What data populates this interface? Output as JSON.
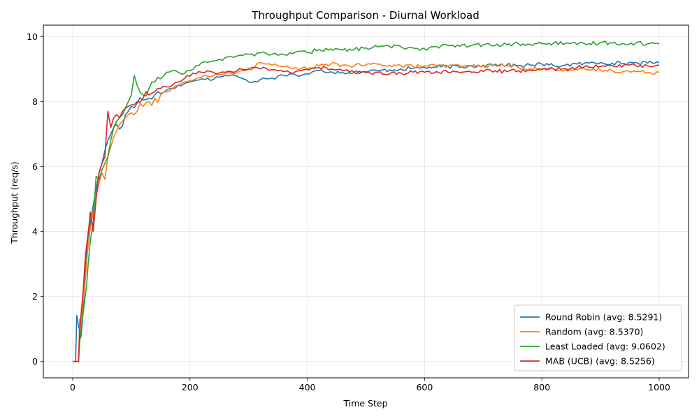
{
  "chart_data": {
    "type": "line",
    "title": "Throughput Comparison - Diurnal Workload",
    "xlabel": "Time Step",
    "ylabel": "Throughput (req/s)",
    "xlim": [
      -50,
      1050
    ],
    "ylim": [
      -0.5,
      10.35
    ],
    "xticks": [
      0,
      200,
      400,
      600,
      800,
      1000
    ],
    "yticks": [
      0,
      2,
      4,
      6,
      8,
      10
    ],
    "grid": true,
    "legend_position": "lower-right",
    "series": [
      {
        "name": "Round Robin (avg: 8.5291)",
        "color": "#1f77b4",
        "x": [
          0,
          5,
          7,
          10,
          12,
          14,
          16,
          18,
          20,
          22,
          24,
          26,
          28,
          30,
          35,
          40,
          45,
          50,
          55,
          60,
          65,
          70,
          75,
          80,
          85,
          90,
          95,
          100,
          110,
          120,
          130,
          140,
          150,
          160,
          170,
          180,
          190,
          200,
          210,
          220,
          230,
          240,
          250,
          260,
          270,
          280,
          290,
          300,
          310,
          320,
          330,
          340,
          350,
          360,
          370,
          380,
          390,
          400,
          420,
          440,
          460,
          480,
          500,
          520,
          540,
          560,
          580,
          600,
          620,
          640,
          660,
          680,
          700,
          720,
          740,
          760,
          780,
          800,
          820,
          840,
          860,
          880,
          900,
          920,
          940,
          960,
          980,
          1000
        ],
        "y": [
          0,
          0,
          1.42,
          1.1,
          0.95,
          0.75,
          1.1,
          1.7,
          2.3,
          2.9,
          3.4,
          3.8,
          4.0,
          4.3,
          4.8,
          5.3,
          5.8,
          6.1,
          6.5,
          6.8,
          7.0,
          7.2,
          7.3,
          7.15,
          7.25,
          7.6,
          7.7,
          7.85,
          7.95,
          8.05,
          8.1,
          8.2,
          8.25,
          8.35,
          8.4,
          8.5,
          8.55,
          8.6,
          8.65,
          8.7,
          8.72,
          8.68,
          8.75,
          8.8,
          8.82,
          8.78,
          8.7,
          8.6,
          8.62,
          8.68,
          8.7,
          8.72,
          8.78,
          8.8,
          8.85,
          8.82,
          8.8,
          8.85,
          8.95,
          8.92,
          8.9,
          8.9,
          8.92,
          8.95,
          8.97,
          9.0,
          9.02,
          9.05,
          9.05,
          9.08,
          9.05,
          9.1,
          9.12,
          9.15,
          9.12,
          9.1,
          9.12,
          9.15,
          9.1,
          9.12,
          9.15,
          9.18,
          9.2,
          9.18,
          9.17,
          9.2,
          9.18,
          9.2
        ]
      },
      {
        "name": "Random (avg: 8.5370)",
        "color": "#ff7f0e",
        "x": [
          0,
          10,
          12,
          14,
          16,
          18,
          20,
          22,
          24,
          26,
          28,
          30,
          35,
          40,
          45,
          50,
          55,
          60,
          65,
          70,
          75,
          80,
          85,
          90,
          95,
          100,
          110,
          120,
          130,
          140,
          150,
          160,
          170,
          180,
          190,
          200,
          210,
          220,
          230,
          240,
          250,
          260,
          270,
          280,
          290,
          300,
          310,
          320,
          330,
          340,
          350,
          360,
          370,
          380,
          390,
          400,
          420,
          440,
          460,
          480,
          500,
          520,
          540,
          560,
          580,
          600,
          620,
          640,
          660,
          680,
          700,
          720,
          740,
          760,
          780,
          800,
          820,
          840,
          860,
          880,
          900,
          920,
          940,
          960,
          980,
          1000
        ],
        "y": [
          0,
          0,
          1.3,
          1.0,
          1.5,
          1.9,
          2.2,
          2.6,
          3.1,
          3.5,
          3.8,
          4.1,
          4.6,
          5.1,
          5.5,
          5.8,
          5.6,
          6.3,
          6.6,
          6.9,
          7.1,
          7.3,
          7.4,
          7.5,
          7.6,
          7.65,
          7.7,
          7.85,
          8.0,
          8.1,
          8.2,
          8.3,
          8.4,
          8.5,
          8.6,
          8.65,
          8.7,
          8.75,
          8.78,
          8.8,
          8.82,
          8.85,
          8.88,
          8.9,
          8.95,
          9.0,
          9.05,
          9.2,
          9.15,
          9.12,
          9.1,
          9.08,
          9.05,
          9.05,
          9.02,
          9.0,
          9.1,
          9.15,
          9.12,
          9.1,
          9.12,
          9.15,
          9.12,
          9.1,
          9.08,
          9.1,
          9.1,
          9.08,
          9.1,
          9.08,
          9.1,
          9.12,
          9.1,
          9.05,
          9.02,
          9.0,
          9.0,
          8.98,
          8.97,
          8.98,
          8.97,
          8.95,
          8.93,
          8.92,
          8.9,
          8.9
        ]
      },
      {
        "name": "Least Loaded (avg: 9.0602)",
        "color": "#2ca02c",
        "x": [
          0,
          10,
          12,
          14,
          16,
          18,
          20,
          22,
          24,
          26,
          28,
          30,
          35,
          40,
          45,
          50,
          55,
          60,
          65,
          70,
          75,
          80,
          85,
          90,
          95,
          100,
          105,
          110,
          120,
          130,
          140,
          150,
          160,
          170,
          180,
          190,
          200,
          210,
          220,
          230,
          240,
          250,
          260,
          270,
          280,
          290,
          300,
          310,
          320,
          330,
          340,
          350,
          360,
          370,
          380,
          390,
          400,
          420,
          440,
          460,
          480,
          500,
          520,
          540,
          560,
          580,
          600,
          620,
          640,
          660,
          680,
          700,
          720,
          740,
          760,
          780,
          800,
          820,
          840,
          860,
          880,
          900,
          920,
          940,
          960,
          980,
          1000
        ],
        "y": [
          0,
          0,
          0.6,
          0.9,
          1.2,
          1.5,
          1.8,
          2.1,
          2.4,
          2.9,
          3.3,
          3.7,
          4.3,
          5.7,
          5.6,
          5.9,
          6.1,
          6.3,
          6.8,
          7.2,
          7.4,
          7.5,
          7.6,
          7.8,
          8.0,
          8.2,
          8.8,
          8.5,
          8.2,
          8.4,
          8.6,
          8.7,
          8.9,
          8.95,
          8.9,
          8.85,
          8.95,
          9.1,
          9.2,
          9.2,
          9.25,
          9.3,
          9.35,
          9.38,
          9.4,
          9.42,
          9.45,
          9.4,
          9.5,
          9.48,
          9.45,
          9.42,
          9.45,
          9.5,
          9.52,
          9.55,
          9.5,
          9.6,
          9.62,
          9.58,
          9.6,
          9.65,
          9.68,
          9.7,
          9.68,
          9.65,
          9.62,
          9.7,
          9.72,
          9.7,
          9.72,
          9.75,
          9.72,
          9.75,
          9.78,
          9.75,
          9.78,
          9.8,
          9.78,
          9.75,
          9.78,
          9.82,
          9.8,
          9.78,
          9.8,
          9.78,
          9.77
        ]
      },
      {
        "name": "MAB (UCB) (avg: 8.5256)",
        "color": "#d62728",
        "x": [
          0,
          10,
          12,
          14,
          16,
          18,
          20,
          22,
          24,
          26,
          28,
          30,
          35,
          40,
          45,
          50,
          55,
          60,
          65,
          70,
          75,
          80,
          85,
          90,
          95,
          100,
          110,
          120,
          130,
          140,
          150,
          160,
          170,
          180,
          190,
          200,
          210,
          220,
          230,
          240,
          250,
          260,
          270,
          280,
          290,
          300,
          310,
          320,
          330,
          340,
          350,
          360,
          370,
          380,
          390,
          400,
          420,
          440,
          460,
          480,
          500,
          520,
          540,
          560,
          580,
          600,
          620,
          640,
          660,
          680,
          700,
          720,
          740,
          760,
          780,
          800,
          820,
          840,
          860,
          880,
          900,
          920,
          940,
          960,
          980,
          1000
        ],
        "y": [
          0,
          0,
          1.0,
          1.4,
          1.8,
          2.2,
          2.8,
          3.3,
          3.6,
          3.9,
          4.2,
          4.6,
          4.0,
          5.0,
          5.8,
          6.1,
          6.3,
          7.7,
          7.2,
          7.5,
          7.6,
          7.5,
          7.7,
          7.8,
          7.85,
          7.9,
          8.0,
          8.1,
          8.2,
          8.3,
          8.4,
          8.45,
          8.5,
          8.6,
          8.7,
          8.78,
          8.85,
          8.9,
          8.95,
          8.9,
          8.88,
          8.9,
          8.92,
          8.95,
          8.98,
          9.0,
          9.05,
          9.0,
          9.02,
          8.98,
          8.95,
          8.92,
          8.9,
          8.92,
          8.95,
          8.98,
          9.05,
          9.0,
          8.95,
          8.9,
          8.88,
          8.9,
          8.85,
          8.88,
          8.9,
          8.9,
          8.92,
          8.9,
          8.88,
          8.9,
          8.92,
          8.95,
          8.92,
          8.95,
          8.97,
          8.98,
          9.0,
          9.02,
          9.05,
          9.05,
          9.08,
          9.1,
          9.12,
          9.1,
          9.1,
          9.12
        ]
      }
    ]
  }
}
